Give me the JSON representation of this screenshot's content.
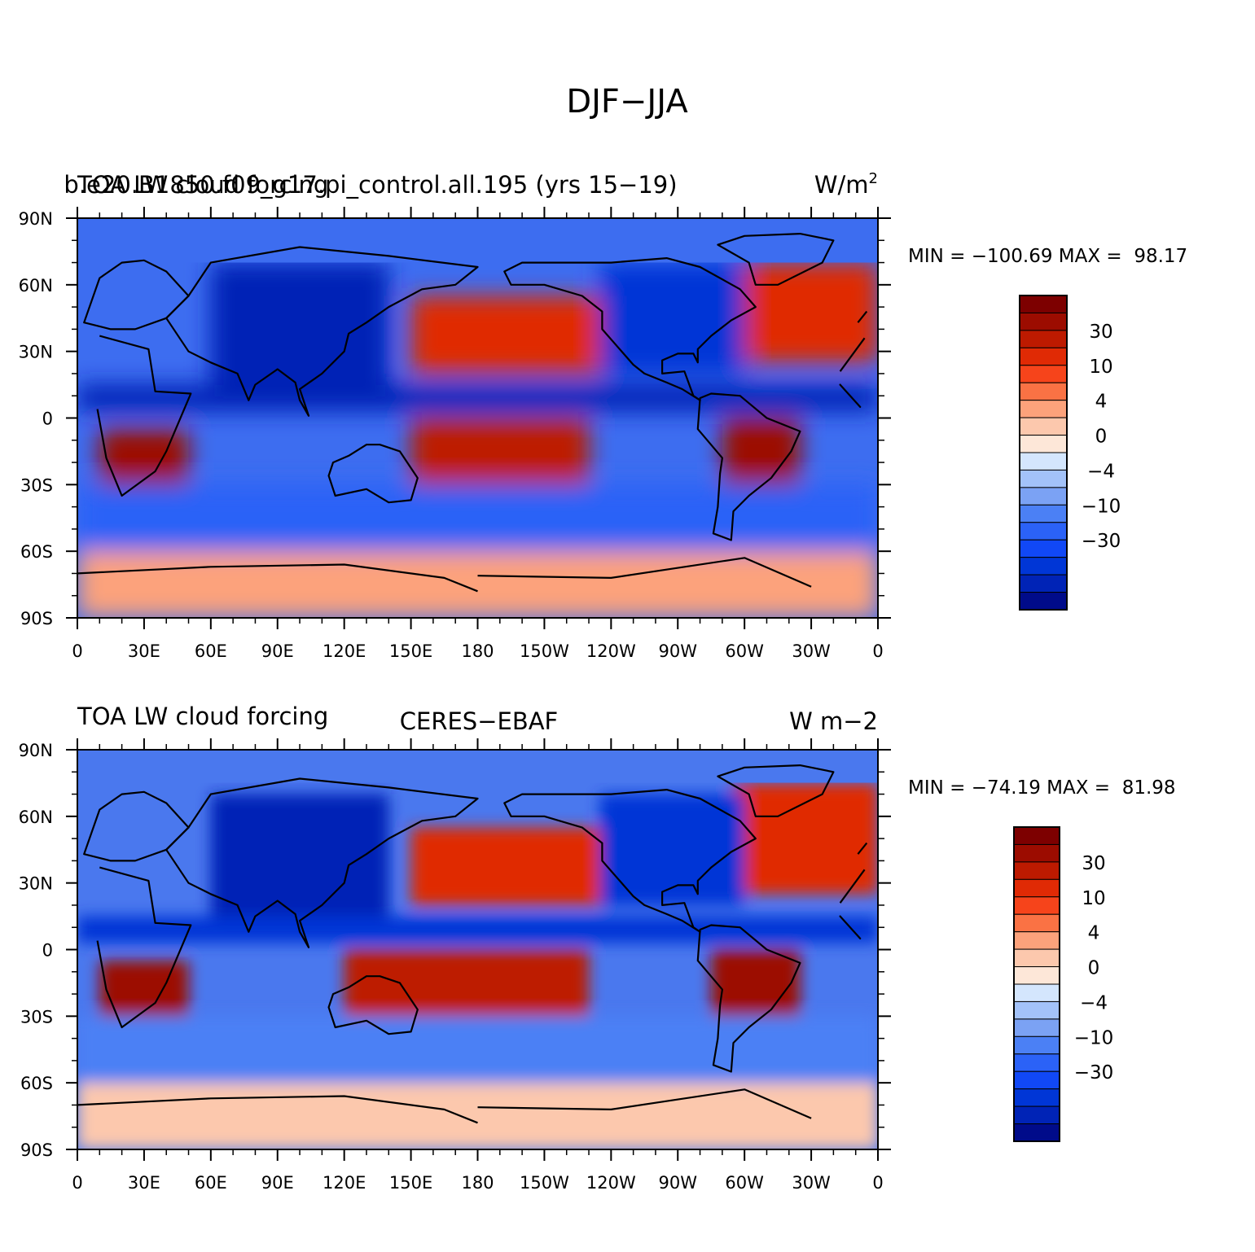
{
  "figure_title": "DJF−JJA",
  "chart_data": [
    {
      "type": "heatmap",
      "panel": "top",
      "left_label": "TOA LW cloud forcing",
      "center_label": "b.e20.B1850.f09_g17.pi_control.all.195 (yrs 15−19)",
      "right_label": "W/m",
      "right_label_sup": "2",
      "stats_label": "MIN = −100.69 MAX =  98.17",
      "min": -100.69,
      "max": 98.17,
      "x_ticks": [
        "0",
        "30E",
        "60E",
        "90E",
        "120E",
        "150E",
        "180",
        "150W",
        "120W",
        "90W",
        "60W",
        "30W",
        "0"
      ],
      "y_ticks": [
        "90N",
        "60N",
        "30N",
        "0",
        "30S",
        "60S",
        "90S"
      ],
      "xlim": [
        0,
        360
      ],
      "ylim": [
        -90,
        90
      ],
      "colorbar": {
        "levels": [
          -50,
          -40,
          -30,
          -20,
          -15,
          -10,
          -6,
          -4,
          -2,
          0,
          2,
          4,
          6,
          10,
          15,
          20,
          30,
          40,
          50
        ],
        "labels": [
          "30",
          "10",
          "4",
          "0",
          "−4",
          "−10",
          "−30"
        ]
      },
      "features": [
        {
          "name": "tropical-pacific-warm",
          "lon": [
            150,
            230
          ],
          "lat": [
            -30,
            0
          ],
          "value": 30
        },
        {
          "name": "north-pacific-warm",
          "lon": [
            150,
            235
          ],
          "lat": [
            20,
            55
          ],
          "value": 20
        },
        {
          "name": "north-atlantic-warm",
          "lon": [
            300,
            360
          ],
          "lat": [
            25,
            70
          ],
          "value": 20
        },
        {
          "name": "south-africa-warm",
          "lon": [
            10,
            50
          ],
          "lat": [
            -35,
            -5
          ],
          "value": 40
        },
        {
          "name": "south-america-warm",
          "lon": [
            290,
            325
          ],
          "lat": [
            -30,
            0
          ],
          "value": 40
        },
        {
          "name": "asia-cool",
          "lon": [
            60,
            140
          ],
          "lat": [
            15,
            70
          ],
          "value": -30
        },
        {
          "name": "north-america-cool",
          "lon": [
            235,
            300
          ],
          "lat": [
            20,
            70
          ],
          "value": -20
        },
        {
          "name": "itcz-cool",
          "lon": [
            0,
            360
          ],
          "lat": [
            3,
            15
          ],
          "value": -30
        },
        {
          "name": "southern-ocean-cool",
          "lon": [
            0,
            360
          ],
          "lat": [
            -60,
            -30
          ],
          "value": -10
        },
        {
          "name": "antarctic-warm",
          "lon": [
            0,
            360
          ],
          "lat": [
            -90,
            -60
          ],
          "value": 6
        }
      ]
    },
    {
      "type": "heatmap",
      "panel": "bottom",
      "left_label": "TOA LW cloud forcing",
      "center_label": "CERES−EBAF",
      "right_label": "W m−2",
      "stats_label": "MIN = −74.19 MAX =  81.98",
      "min": -74.19,
      "max": 81.98,
      "x_ticks": [
        "0",
        "30E",
        "60E",
        "90E",
        "120E",
        "150E",
        "180",
        "150W",
        "120W",
        "90W",
        "60W",
        "30W",
        "0"
      ],
      "y_ticks": [
        "90N",
        "60N",
        "30N",
        "0",
        "30S",
        "60S",
        "90S"
      ],
      "xlim": [
        0,
        360
      ],
      "ylim": [
        -90,
        90
      ],
      "colorbar": {
        "levels": [
          -50,
          -40,
          -30,
          -20,
          -15,
          -10,
          -6,
          -4,
          -2,
          0,
          2,
          4,
          6,
          10,
          15,
          20,
          30,
          40,
          50
        ],
        "labels": [
          "30",
          "10",
          "4",
          "0",
          "−4",
          "−10",
          "−30"
        ]
      },
      "features": [
        {
          "name": "tropical-pacific-warm",
          "lon": [
            120,
            230
          ],
          "lat": [
            -30,
            0
          ],
          "value": 30
        },
        {
          "name": "north-pacific-warm",
          "lon": [
            150,
            240
          ],
          "lat": [
            20,
            55
          ],
          "value": 20
        },
        {
          "name": "north-atlantic-warm",
          "lon": [
            295,
            360
          ],
          "lat": [
            25,
            75
          ],
          "value": 20
        },
        {
          "name": "south-africa-warm",
          "lon": [
            10,
            50
          ],
          "lat": [
            -35,
            -5
          ],
          "value": 40
        },
        {
          "name": "south-america-warm",
          "lon": [
            285,
            325
          ],
          "lat": [
            -30,
            0
          ],
          "value": 40
        },
        {
          "name": "asia-cool",
          "lon": [
            60,
            140
          ],
          "lat": [
            15,
            70
          ],
          "value": -30
        },
        {
          "name": "north-america-cool",
          "lon": [
            235,
            300
          ],
          "lat": [
            20,
            70
          ],
          "value": -20
        },
        {
          "name": "itcz-cool",
          "lon": [
            0,
            360
          ],
          "lat": [
            3,
            15
          ],
          "value": -20
        },
        {
          "name": "southern-ocean-cool",
          "lon": [
            0,
            360
          ],
          "lat": [
            -60,
            -30
          ],
          "value": -6
        },
        {
          "name": "antarctic-warm",
          "lon": [
            0,
            360
          ],
          "lat": [
            -90,
            -60
          ],
          "value": 4
        }
      ]
    }
  ]
}
